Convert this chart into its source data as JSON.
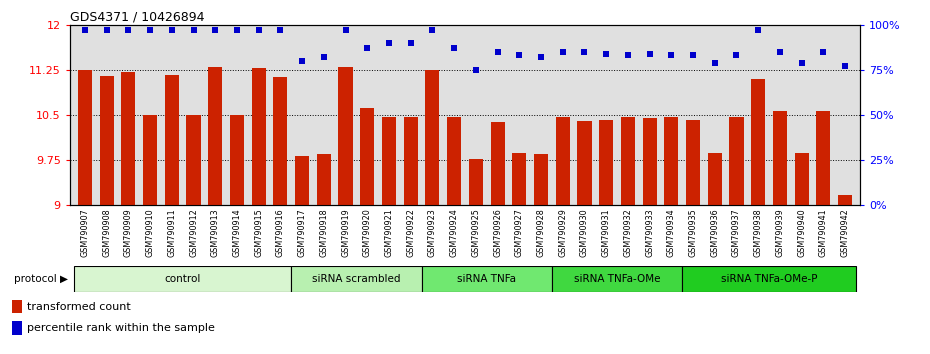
{
  "title": "GDS4371 / 10426894",
  "samples": [
    "GSM790907",
    "GSM790908",
    "GSM790909",
    "GSM790910",
    "GSM790911",
    "GSM790912",
    "GSM790913",
    "GSM790914",
    "GSM790915",
    "GSM790916",
    "GSM790917",
    "GSM790918",
    "GSM790919",
    "GSM790920",
    "GSM790921",
    "GSM790922",
    "GSM790923",
    "GSM790924",
    "GSM790925",
    "GSM790926",
    "GSM790927",
    "GSM790928",
    "GSM790929",
    "GSM790930",
    "GSM790931",
    "GSM790932",
    "GSM790933",
    "GSM790934",
    "GSM790935",
    "GSM790936",
    "GSM790937",
    "GSM790938",
    "GSM790939",
    "GSM790940",
    "GSM790941",
    "GSM790942"
  ],
  "bar_values": [
    11.25,
    11.15,
    11.21,
    10.5,
    11.17,
    10.5,
    11.3,
    10.5,
    11.28,
    11.14,
    9.82,
    9.85,
    11.3,
    10.62,
    10.47,
    10.47,
    11.25,
    10.47,
    9.77,
    10.38,
    9.87,
    9.85,
    10.47,
    10.4,
    10.42,
    10.47,
    10.45,
    10.47,
    10.42,
    9.87,
    10.47,
    11.1,
    10.57,
    9.87,
    10.57,
    9.17
  ],
  "percentile_values": [
    97,
    97,
    97,
    97,
    97,
    97,
    97,
    97,
    97,
    97,
    80,
    82,
    97,
    87,
    90,
    90,
    97,
    87,
    75,
    85,
    83,
    82,
    85,
    85,
    84,
    83,
    84,
    83,
    83,
    79,
    83,
    97,
    85,
    79,
    85,
    77
  ],
  "groups": [
    {
      "label": "control",
      "start": 0,
      "end": 9,
      "color": "#d8f5d0"
    },
    {
      "label": "siRNA scrambled",
      "start": 10,
      "end": 15,
      "color": "#b8f0b0"
    },
    {
      "label": "siRNA TNFa",
      "start": 16,
      "end": 21,
      "color": "#70e870"
    },
    {
      "label": "siRNA TNFa-OMe",
      "start": 22,
      "end": 27,
      "color": "#40d840"
    },
    {
      "label": "siRNA TNFa-OMe-P",
      "start": 28,
      "end": 35,
      "color": "#20cc20"
    }
  ],
  "bar_color": "#cc2200",
  "dot_color": "#0000cc",
  "ylim_left": [
    9,
    12
  ],
  "ylim_right": [
    0,
    100
  ],
  "yticks_left": [
    9,
    9.75,
    10.5,
    11.25,
    12
  ],
  "yticks_right": [
    0,
    25,
    50,
    75,
    100
  ],
  "ytick_labels_left": [
    "9",
    "9.75",
    "10.5",
    "11.25",
    "12"
  ],
  "ytick_labels_right": [
    "0%",
    "25%",
    "50%",
    "75%",
    "100%"
  ],
  "dotted_lines": [
    9.75,
    10.5,
    11.25
  ],
  "bg_color": "#e0e0e0",
  "legend_bar_label": "transformed count",
  "legend_dot_label": "percentile rank within the sample",
  "protocol_label": "protocol"
}
